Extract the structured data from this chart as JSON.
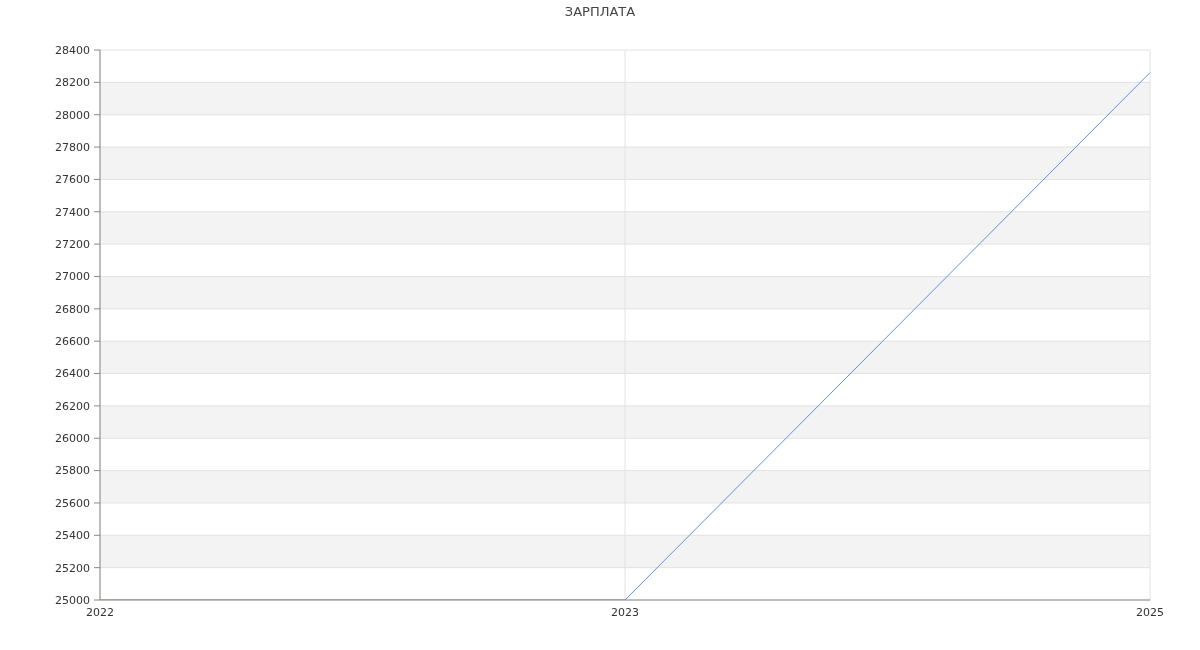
{
  "chart_data": {
    "type": "line",
    "title": "ЗАРПЛАТА",
    "categories": [
      "2022",
      "2023",
      "2025"
    ],
    "series": [
      {
        "color": "#5f8fe8",
        "values": [
          25000,
          25000,
          28260
        ]
      }
    ],
    "ylim": [
      25000,
      28400
    ],
    "yticks": [
      25000,
      25200,
      25400,
      25600,
      25800,
      26000,
      26200,
      26400,
      26600,
      26800,
      27000,
      27200,
      27400,
      27600,
      27800,
      28000,
      28200,
      28400
    ],
    "grid": true,
    "marker": "none",
    "line_style": "solid"
  }
}
